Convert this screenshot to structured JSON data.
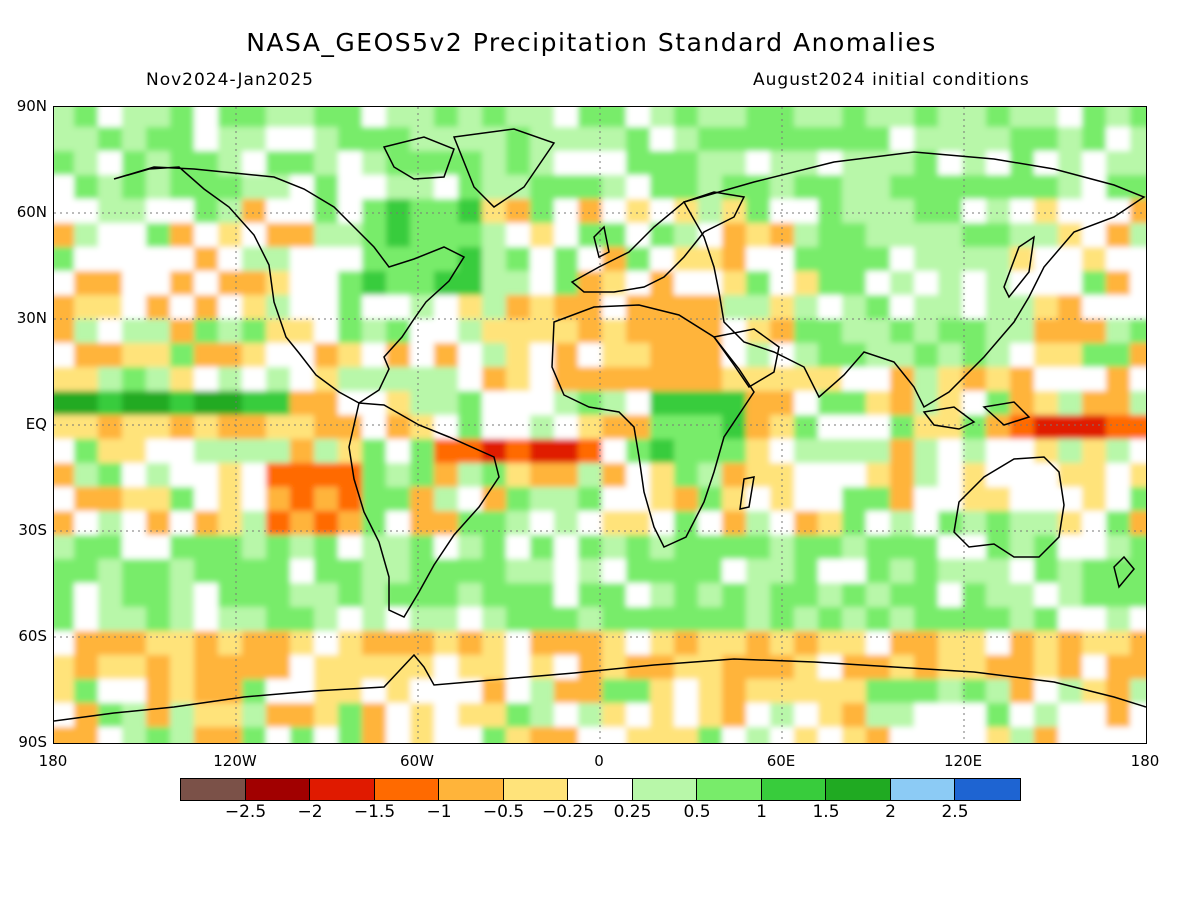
{
  "title": "NASA_GEOS5v2 Precipitation Standard Anomalies",
  "subtitle_left": "Nov2024-Jan2025",
  "subtitle_right": "August2024 initial conditions",
  "lat_labels": [
    "90N",
    "60N",
    "30N",
    "EQ",
    "30S",
    "60S",
    "90S"
  ],
  "lat_values": [
    90,
    60,
    30,
    0,
    -30,
    -60,
    -90
  ],
  "lon_labels": [
    "180",
    "120W",
    "60W",
    "0",
    "60E",
    "120E",
    "180"
  ],
  "lon_values": [
    -180,
    -120,
    -60,
    0,
    60,
    120,
    180
  ],
  "colorbar": {
    "colors": [
      "#7b5148",
      "#a10000",
      "#e01a00",
      "#ff6a00",
      "#ffb43a",
      "#ffe37a",
      "#ffffff",
      "#b8f7a9",
      "#78ec6a",
      "#38cc3c",
      "#20aa22",
      "#8ccbf5",
      "#1e64d2"
    ],
    "labels": [
      "−2.5",
      "−2",
      "−1.5",
      "−1",
      "−0.5",
      "−0.25",
      "0.25",
      "0.5",
      "1",
      "1.5",
      "2",
      "2.5"
    ]
  },
  "anomaly_regions": [
    {
      "category": "wet",
      "lon": [
        -180,
        180
      ],
      "lat": [
        62,
        90
      ],
      "level": 0.5
    },
    {
      "category": "wet",
      "lon": [
        -180,
        -100
      ],
      "lat": [
        4,
        9
      ],
      "level": 1.5
    },
    {
      "category": "dry",
      "lon": [
        -180,
        -80
      ],
      "lat": [
        -6,
        4
      ],
      "level": -0.5
    },
    {
      "category": "dry",
      "lon": [
        -50,
        5
      ],
      "lat": [
        -12,
        -2
      ],
      "level": -1.5
    },
    {
      "category": "dry",
      "lon": [
        140,
        180
      ],
      "lat": [
        -4,
        4
      ],
      "level": -1.5
    },
    {
      "category": "wet",
      "lon": [
        -80,
        -40
      ],
      "lat": [
        35,
        60
      ],
      "level": 1
    },
    {
      "category": "dry",
      "lon": [
        -30,
        40
      ],
      "lat": [
        10,
        35
      ],
      "level": -0.5
    },
    {
      "category": "wet",
      "lon": [
        20,
        50
      ],
      "lat": [
        -15,
        10
      ],
      "level": 1
    },
    {
      "category": "wet",
      "lon": [
        70,
        140
      ],
      "lat": [
        15,
        60
      ],
      "level": 0.5
    },
    {
      "category": "dry",
      "lon": [
        -180,
        180
      ],
      "lat": [
        -75,
        -62
      ],
      "level": -0.5
    },
    {
      "category": "wet",
      "lon": [
        -180,
        180
      ],
      "lat": [
        -60,
        -35
      ],
      "level": 0.5
    },
    {
      "category": "dry",
      "lon": [
        -110,
        -75
      ],
      "lat": [
        -35,
        -15
      ],
      "level": -1
    }
  ]
}
